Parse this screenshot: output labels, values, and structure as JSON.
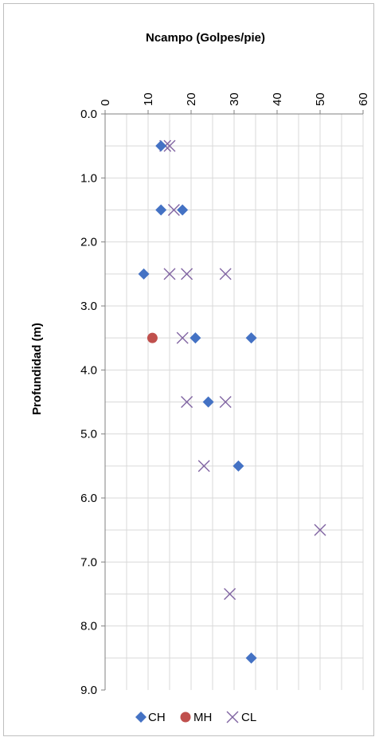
{
  "chart_data": {
    "type": "scatter",
    "title": "Ncampo (Golpes/pie)",
    "xlabel": "",
    "ylabel": "Profundidad (m)",
    "x_axis_position": "top",
    "y_axis_inverted": true,
    "xlim": [
      0,
      60
    ],
    "ylim": [
      0.0,
      9.0
    ],
    "x_ticks": [
      "0",
      "10",
      "20",
      "30",
      "40",
      "50",
      "60"
    ],
    "y_ticks": [
      "0.0",
      "1.0",
      "2.0",
      "3.0",
      "4.0",
      "5.0",
      "6.0",
      "7.0",
      "8.0",
      "9.0"
    ],
    "grid": true,
    "legend_position": "bottom",
    "series": [
      {
        "name": "CH",
        "color": "#4472c4",
        "marker": "diamond",
        "points": [
          {
            "x": 13,
            "y": 0.5
          },
          {
            "x": 13,
            "y": 1.5
          },
          {
            "x": 18,
            "y": 1.5
          },
          {
            "x": 9,
            "y": 2.5
          },
          {
            "x": 21,
            "y": 3.5
          },
          {
            "x": 34,
            "y": 3.5
          },
          {
            "x": 24,
            "y": 4.5
          },
          {
            "x": 31,
            "y": 5.5
          },
          {
            "x": 34,
            "y": 8.5
          }
        ]
      },
      {
        "name": "MH",
        "color": "#c0504d",
        "marker": "circle",
        "points": [
          {
            "x": 11,
            "y": 3.5
          }
        ]
      },
      {
        "name": "CL",
        "color": "#8064a2",
        "marker": "x",
        "points": [
          {
            "x": 14,
            "y": 0.5
          },
          {
            "x": 15,
            "y": 0.5
          },
          {
            "x": 16,
            "y": 1.5
          },
          {
            "x": 15,
            "y": 2.5
          },
          {
            "x": 19,
            "y": 2.5
          },
          {
            "x": 28,
            "y": 2.5
          },
          {
            "x": 18,
            "y": 3.5
          },
          {
            "x": 19,
            "y": 4.5
          },
          {
            "x": 28,
            "y": 4.5
          },
          {
            "x": 23,
            "y": 5.5
          },
          {
            "x": 50,
            "y": 6.5
          },
          {
            "x": 29,
            "y": 7.5
          }
        ]
      }
    ]
  }
}
